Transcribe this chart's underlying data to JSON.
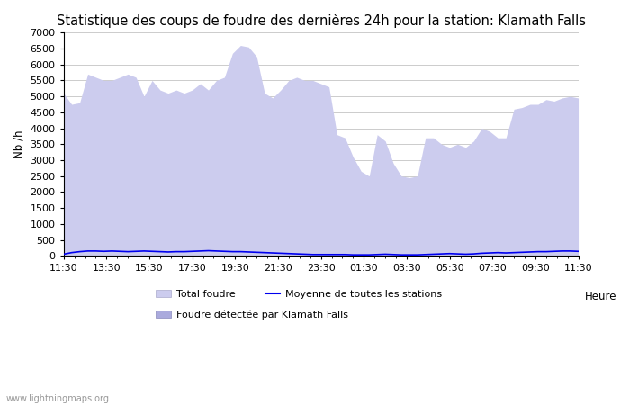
{
  "title": "Statistique des coups de foudre des dernières 24h pour la station: Klamath Falls",
  "ylabel": "Nb /h",
  "xlabel": "Heure",
  "watermark": "www.lightningmaps.org",
  "ylim": [
    0,
    7000
  ],
  "yticks": [
    0,
    500,
    1000,
    1500,
    2000,
    2500,
    3000,
    3500,
    4000,
    4500,
    5000,
    5500,
    6000,
    6500,
    7000
  ],
  "xtick_labels": [
    "11:30",
    "13:30",
    "15:30",
    "17:30",
    "19:30",
    "21:30",
    "23:30",
    "01:30",
    "03:30",
    "05:30",
    "07:30",
    "09:30",
    "11:30"
  ],
  "background_color": "#ffffff",
  "plot_bg_color": "#ffffff",
  "grid_color": "#cccccc",
  "fill_color_total": "#ccccee",
  "fill_color_klamath": "#aaaadd",
  "line_color_mean": "#0000ee",
  "title_fontsize": 10.5,
  "axis_fontsize": 8.5,
  "tick_fontsize": 8,
  "total_foudre": [
    5100,
    4750,
    4800,
    5700,
    5600,
    5500,
    5500,
    5600,
    5700,
    5600,
    5000,
    5500,
    5200,
    5100,
    5200,
    5100,
    5200,
    5400,
    5200,
    5500,
    5600,
    6350,
    6600,
    6550,
    6250,
    5100,
    4950,
    5200,
    5500,
    5600,
    5500,
    5500,
    5400,
    5300,
    3800,
    3700,
    3100,
    2650,
    2500,
    3800,
    3600,
    2900,
    2500,
    2450,
    2500,
    3700,
    3700,
    3500,
    3400,
    3500,
    3400,
    3600,
    4000,
    3900,
    3700,
    3700,
    4600,
    4650,
    4750,
    4750,
    4900,
    4850,
    4950,
    5000,
    4950
  ],
  "klamath_foudre": [
    5,
    5,
    5,
    5,
    5,
    5,
    5,
    5,
    5,
    5,
    5,
    5,
    5,
    5,
    5,
    5,
    5,
    5,
    5,
    5,
    5,
    5,
    5,
    5,
    5,
    5,
    5,
    5,
    5,
    5,
    5,
    5,
    5,
    5,
    5,
    5,
    5,
    5,
    5,
    5,
    5,
    5,
    5,
    5,
    5,
    5,
    5,
    5,
    5,
    5,
    5,
    5,
    5,
    5,
    5,
    5,
    5,
    5,
    5,
    5,
    5,
    5,
    5,
    5,
    5
  ],
  "mean_foudre": [
    50,
    100,
    130,
    150,
    150,
    140,
    150,
    140,
    130,
    140,
    150,
    140,
    130,
    120,
    130,
    130,
    140,
    150,
    160,
    150,
    140,
    130,
    130,
    120,
    110,
    100,
    90,
    80,
    70,
    60,
    50,
    40,
    40,
    40,
    40,
    40,
    30,
    30,
    30,
    40,
    50,
    40,
    30,
    30,
    30,
    40,
    50,
    60,
    70,
    60,
    50,
    60,
    80,
    90,
    100,
    90,
    100,
    110,
    120,
    130,
    130,
    140,
    150,
    150,
    140
  ],
  "legend_total": "Total foudre",
  "legend_mean": "Moyenne de toutes les stations",
  "legend_klamath": "Foudre détectée par Klamath Falls"
}
